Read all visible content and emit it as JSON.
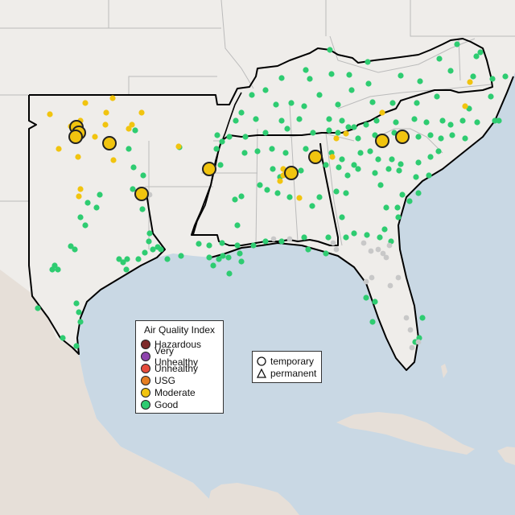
{
  "map": {
    "colors": {
      "land": "#efedea",
      "water": "#c9d8e4",
      "mexico": "#e6dfd8",
      "borders": "#bbbbbb",
      "region_outline": "#000000",
      "offline": "#c8c8c8"
    }
  },
  "legend": {
    "title": "Air Quality Index",
    "categories": [
      {
        "label": "Hazardous",
        "color": "#7e2a2a"
      },
      {
        "label": "Very Unhealthy",
        "color": "#8e44ad"
      },
      {
        "label": "Unhealthy",
        "color": "#e74c3c"
      },
      {
        "label": "USG",
        "color": "#e67e22"
      },
      {
        "label": "Moderate",
        "color": "#f1c40f"
      },
      {
        "label": "Good",
        "color": "#2ecc71"
      }
    ]
  },
  "shape_legend": {
    "items": [
      {
        "label": "temporary",
        "icon": "circle-icon"
      },
      {
        "label": "permanent",
        "icon": "triangle-icon"
      }
    ]
  }
}
